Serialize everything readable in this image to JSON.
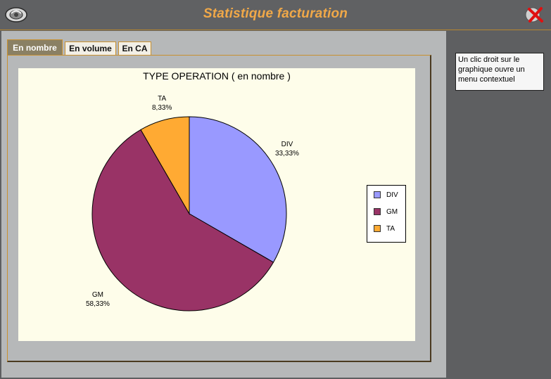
{
  "window": {
    "title": "Statistique facturation"
  },
  "tabs": [
    {
      "label": "En nombre",
      "active": true
    },
    {
      "label": "En volume",
      "active": false
    },
    {
      "label": "En CA",
      "active": false
    }
  ],
  "hint": {
    "text": "Un clic droit sur le graphique ouvre un menu contextuel"
  },
  "chart_data": {
    "type": "pie",
    "title": "TYPE OPERATION ( en nombre )",
    "categories": [
      "DIV",
      "GM",
      "TA"
    ],
    "values": [
      33.33,
      58.33,
      8.33
    ],
    "value_labels": [
      "33,33%",
      "58,33%",
      "8,33%"
    ],
    "colors": [
      "#9999ff",
      "#993366",
      "#ffaa33"
    ],
    "legend": "right",
    "start_angle": "12 o'clock",
    "direction": "clockwise"
  },
  "colors": {
    "title_text": "#f0a848",
    "chart_background": "#fefdea",
    "panel_background": "#b6b8b9",
    "side_background": "#5e5f61"
  },
  "icons": {
    "app": "app-logo-icon",
    "close": "close-icon"
  }
}
